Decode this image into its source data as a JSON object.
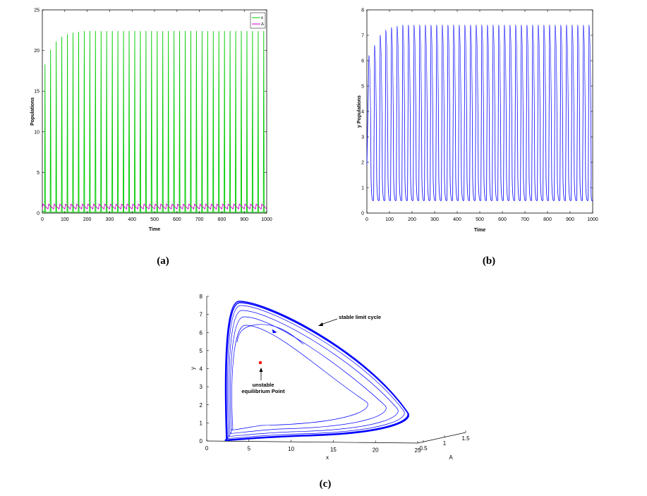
{
  "colors": {
    "green": "#00cc00",
    "magenta": "#cc00cc",
    "blue": "#0000ff",
    "red": "#ff0000"
  },
  "chart_data": [
    {
      "type": "line",
      "panel_label": "(a)",
      "xlabel": "Time",
      "ylabel": "Populations",
      "xlim": [
        0,
        1000
      ],
      "ylim": [
        0,
        25
      ],
      "xticks": [
        0,
        100,
        200,
        300,
        400,
        500,
        600,
        700,
        800,
        900,
        1000
      ],
      "yticks": [
        0,
        5,
        10,
        15,
        20,
        25
      ],
      "legend_position": "top-right",
      "series": [
        {
          "name": "x",
          "color": "#00cc00",
          "period": 25,
          "peaks": [
            18.3,
            20.1,
            21.1,
            21.7,
            22.0,
            22.2,
            22.3,
            22.4
          ],
          "min": 0.1
        },
        {
          "name": "A",
          "color": "#cc00cc",
          "period": 25,
          "max": 1.1,
          "min": 0.5
        }
      ]
    },
    {
      "type": "line",
      "panel_label": "(b)",
      "xlabel": "Time",
      "ylabel": "y Populations",
      "xlim": [
        0,
        1000
      ],
      "ylim": [
        0,
        8
      ],
      "xticks": [
        0,
        100,
        200,
        300,
        400,
        500,
        600,
        700,
        800,
        900,
        1000
      ],
      "yticks": [
        0,
        1,
        2,
        3,
        4,
        5,
        6,
        7,
        8
      ],
      "series": [
        {
          "name": "y",
          "color": "#0000ff",
          "period": 25,
          "peaks": [
            6.2,
            6.6,
            7.0,
            7.2,
            7.3,
            7.35,
            7.4
          ],
          "min": 0.3
        }
      ]
    },
    {
      "type": "line",
      "panel_label": "(c)",
      "xlabel": "x",
      "ylabel": "y",
      "zlabel": "A",
      "xlim": [
        0,
        25
      ],
      "ylim": [
        0,
        8
      ],
      "zlim": [
        0.5,
        1.5
      ],
      "xticks": [
        0,
        5,
        10,
        15,
        20,
        25
      ],
      "yticks": [
        0,
        1,
        2,
        3,
        4,
        5,
        6,
        7,
        8
      ],
      "zticks": [
        0.5,
        1,
        1.5
      ],
      "annotations": [
        "stable limit cycle",
        "unstable",
        "equilibrium Point"
      ],
      "equilibrium_point": {
        "x": 6.2,
        "y": 4.2,
        "color": "#ff0000"
      },
      "trajectory_color": "#0000ff"
    }
  ]
}
